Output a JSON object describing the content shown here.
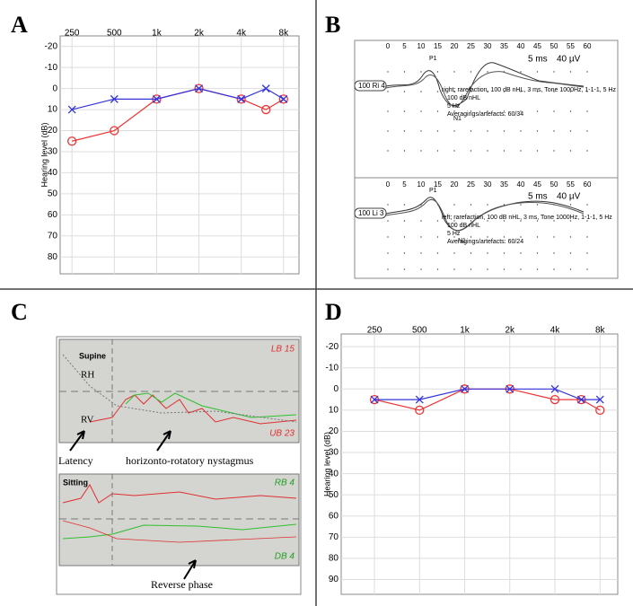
{
  "chart_data": [
    {
      "type": "line",
      "panel": "A",
      "ylabel": "Hearing level (dB)",
      "xscale": "log",
      "grid": true,
      "xlim": [
        206,
        10300
      ],
      "ylim": [
        88,
        -25
      ],
      "xticks": [
        250,
        500,
        {
          "value": 1000,
          "label": "1k"
        },
        {
          "value": 2000,
          "label": "2k"
        },
        {
          "value": 4000,
          "label": "4k"
        },
        {
          "value": 8000,
          "label": "8k"
        }
      ],
      "yticks": [
        -20,
        -10,
        0,
        10,
        20,
        30,
        40,
        50,
        60,
        70,
        80
      ],
      "series": [
        {
          "color": "#ee3333",
          "marker": "circle",
          "x": [
            250,
            500,
            1000,
            2000,
            4000,
            6000,
            8000
          ],
          "values": [
            25,
            20,
            5,
            0,
            5,
            10,
            5
          ]
        },
        {
          "color": "#3333dd",
          "marker": "x",
          "x": [
            250,
            500,
            1000,
            2000,
            4000,
            6000,
            8000
          ],
          "values": [
            10,
            5,
            5,
            0,
            5,
            0,
            5
          ]
        }
      ]
    },
    {
      "type": "line",
      "panel": "D",
      "ylabel": "Hearing level (dB)",
      "xscale": "log",
      "grid": true,
      "xlim": [
        150,
        10500
      ],
      "ylim": [
        97,
        -26
      ],
      "xticks": [
        250,
        500,
        {
          "value": 1000,
          "label": "1k"
        },
        {
          "value": 2000,
          "label": "2k"
        },
        {
          "value": 4000,
          "label": "4k"
        },
        {
          "value": 8000,
          "label": "8k"
        }
      ],
      "yticks": [
        -20,
        -10,
        0,
        10,
        20,
        30,
        40,
        50,
        60,
        70,
        80,
        90
      ],
      "series": [
        {
          "color": "#ee3333",
          "marker": "circle",
          "x": [
            250,
            500,
            1000,
            2000,
            4000,
            6000,
            8000
          ],
          "values": [
            5,
            10,
            0,
            0,
            5,
            5,
            10
          ]
        },
        {
          "color": "#3333dd",
          "marker": "x",
          "x": [
            250,
            500,
            1000,
            2000,
            4000,
            6000,
            8000
          ],
          "values": [
            5,
            5,
            0,
            0,
            0,
            5,
            5
          ]
        }
      ]
    }
  ],
  "panels": {
    "B": {
      "label": "B",
      "time_ticks": [
        "0",
        "5",
        "10",
        "15",
        "20",
        "25",
        "30",
        "35",
        "40",
        "45",
        "50",
        "55",
        "60"
      ],
      "scale_ms": "5 ms",
      "scale_uv": "40 µV",
      "right": {
        "tag": "100 Ri 4",
        "p": "P1",
        "n": "N1",
        "info": [
          "right; rarefaction, 100 dB nHL, 3 ms, Tone 1000Hz, 1-1-1, 5 Hz",
          "100 dB nHL",
          "5 Hz",
          "Averagings/artefacts: 60/34"
        ]
      },
      "left": {
        "tag": "100 Li 3",
        "p": "P1",
        "n": "N1",
        "info": [
          "left; rarefaction, 100 dB nHL, 3 ms, Tone 1000Hz, 1-1-1, 5 Hz",
          "100 dB nHL",
          "5 Hz",
          "Averagings/artefacts: 60/24"
        ]
      }
    },
    "C": {
      "label": "C",
      "supine": "Supine",
      "rh": "RH",
      "rv": "RV",
      "lb": "LB 15",
      "ub": "UB 23",
      "sitting": "Sitting",
      "rb": "RB 4",
      "db": "DB 4",
      "latency": "Latency",
      "nystagmus": "horizonto-rotatory nystagmus",
      "reverse": "Reverse phase"
    }
  }
}
